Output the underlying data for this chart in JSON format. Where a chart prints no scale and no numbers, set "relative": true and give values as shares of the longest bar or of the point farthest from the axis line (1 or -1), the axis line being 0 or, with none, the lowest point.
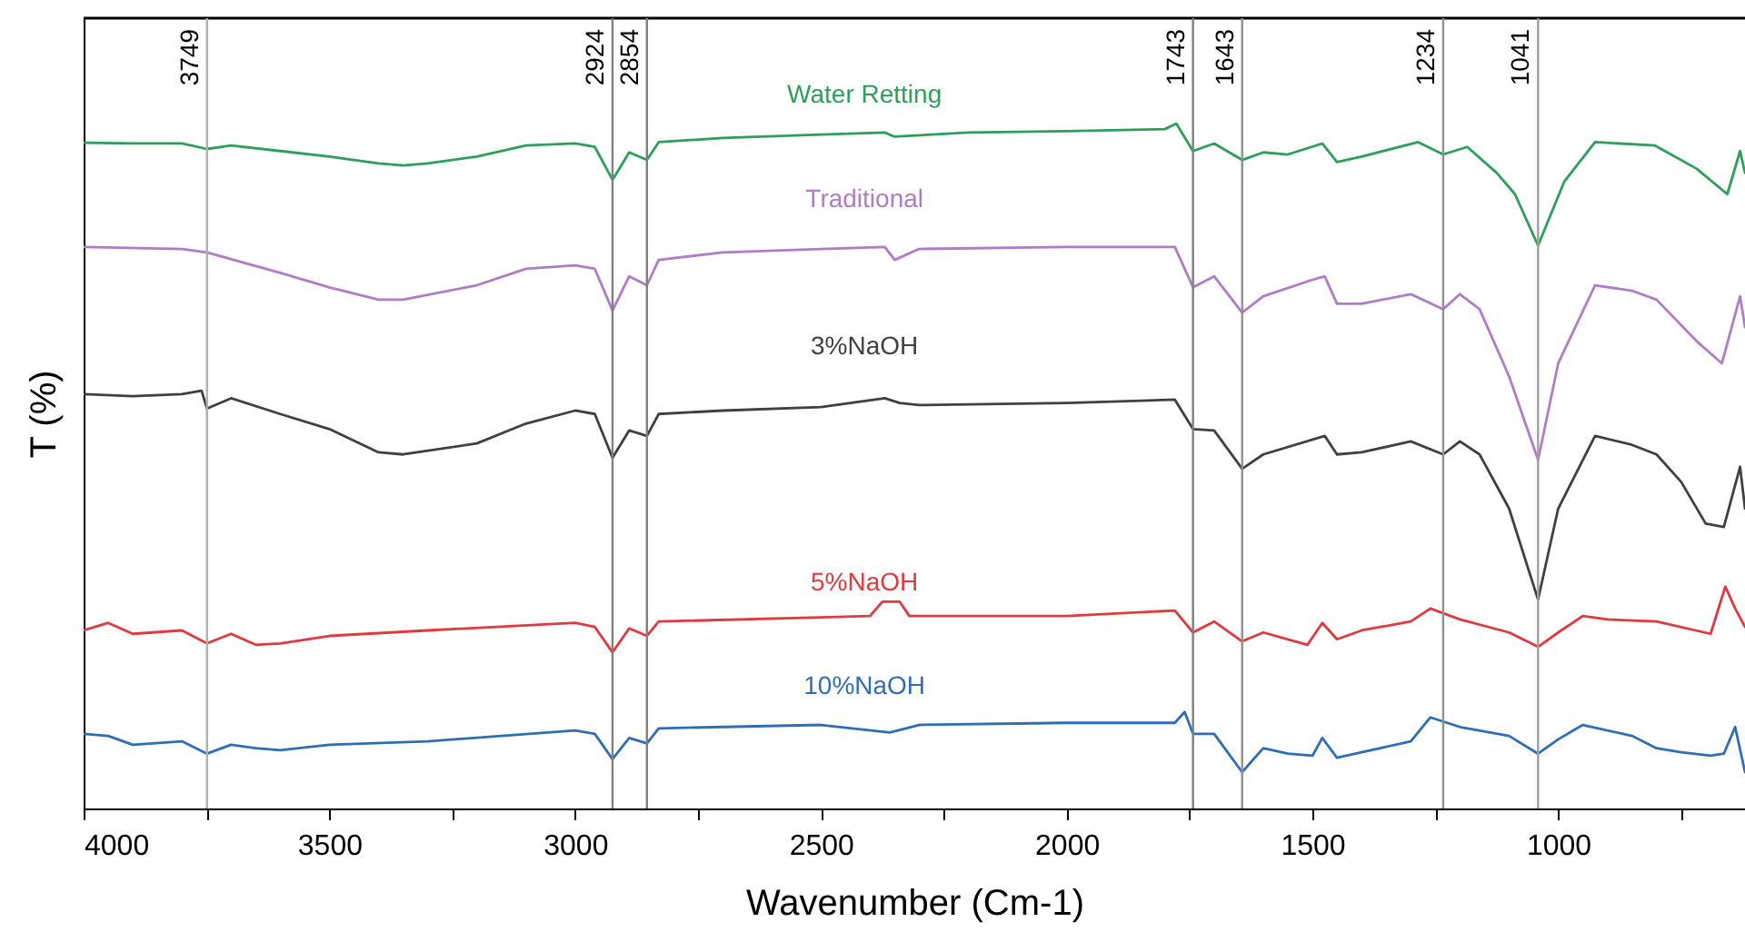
{
  "chart_data": {
    "type": "line",
    "relative": true,
    "xlabel": "Wavenumber (Cm-1)",
    "ylabel": "T (%)",
    "xlim": [
      4000,
      620
    ],
    "xticks": [
      4000,
      {
        "value": 3750,
        "label": null
      },
      3500,
      {
        "value": 3250,
        "label": null
      },
      3000,
      {
        "value": 2750,
        "label": null
      },
      2500,
      {
        "value": 2250,
        "label": null
      },
      2000,
      {
        "value": 1750,
        "label": null
      },
      1500,
      {
        "value": 1250,
        "label": null
      },
      1000,
      {
        "value": 750,
        "label": null
      }
    ],
    "grid": false,
    "line_style": "solid",
    "marker": "none",
    "ref_lines": [
      {
        "axis": "x",
        "value": 3749,
        "label": "3749",
        "color": "#b0b0b0"
      },
      {
        "axis": "x",
        "value": 2924,
        "label": "2924",
        "color": "#808080"
      },
      {
        "axis": "x",
        "value": 2854,
        "label": "2854",
        "color": "#808080"
      },
      {
        "axis": "x",
        "value": 1743,
        "label": "1743",
        "color": "#808080"
      },
      {
        "axis": "x",
        "value": 1643,
        "label": "1643",
        "color": "#909090"
      },
      {
        "axis": "x",
        "value": 1234,
        "label": "1234",
        "color": "#909090"
      },
      {
        "axis": "x",
        "value": 1041,
        "label": "1041",
        "color": "#a0a0a0"
      }
    ],
    "series": [
      {
        "name": "Water Retting",
        "color": "#2e9e5b",
        "x": [
          4000,
          3900,
          3800,
          3749,
          3700,
          3600,
          3500,
          3400,
          3350,
          3300,
          3200,
          3100,
          3000,
          2960,
          2924,
          2890,
          2854,
          2830,
          2700,
          2500,
          2370,
          2350,
          2200,
          2000,
          1800,
          1777,
          1743,
          1700,
          1643,
          1600,
          1550,
          1480,
          1450,
          1400,
          1285,
          1234,
          1185,
          1125,
          1088,
          1041,
          988,
          925,
          803,
          718,
          656,
          630,
          620
        ],
        "values": [
          0.972,
          0.971,
          0.971,
          0.963,
          0.968,
          0.96,
          0.952,
          0.942,
          0.939,
          0.942,
          0.952,
          0.968,
          0.971,
          0.966,
          0.918,
          0.958,
          0.947,
          0.973,
          0.979,
          0.984,
          0.987,
          0.981,
          0.987,
          0.989,
          0.992,
          1.0,
          0.96,
          0.971,
          0.947,
          0.958,
          0.955,
          0.971,
          0.944,
          0.952,
          0.973,
          0.955,
          0.966,
          0.928,
          0.897,
          0.822,
          0.915,
          0.973,
          0.968,
          0.934,
          0.897,
          0.96,
          0.928
        ]
      },
      {
        "name": "Traditional",
        "color": "#b07cc6",
        "x": [
          4000,
          3800,
          3749,
          3600,
          3500,
          3400,
          3350,
          3200,
          3100,
          3000,
          2960,
          2924,
          2890,
          2854,
          2830,
          2700,
          2500,
          2370,
          2350,
          2300,
          2000,
          1780,
          1743,
          1700,
          1643,
          1600,
          1500,
          1475,
          1450,
          1400,
          1300,
          1234,
          1200,
          1160,
          1100,
          1041,
          1000,
          925,
          850,
          800,
          718,
          667,
          630,
          620
        ],
        "values": [
          0.82,
          0.817,
          0.812,
          0.782,
          0.761,
          0.743,
          0.743,
          0.764,
          0.788,
          0.793,
          0.788,
          0.727,
          0.777,
          0.764,
          0.801,
          0.812,
          0.817,
          0.82,
          0.801,
          0.817,
          0.82,
          0.82,
          0.761,
          0.777,
          0.724,
          0.748,
          0.772,
          0.777,
          0.737,
          0.737,
          0.751,
          0.729,
          0.751,
          0.729,
          0.631,
          0.509,
          0.65,
          0.764,
          0.756,
          0.743,
          0.682,
          0.65,
          0.748,
          0.703
        ]
      },
      {
        "name": "3%NaOH",
        "color": "#404040",
        "x": [
          4000,
          3900,
          3800,
          3760,
          3749,
          3700,
          3600,
          3500,
          3400,
          3350,
          3200,
          3100,
          3000,
          2960,
          2924,
          2890,
          2854,
          2830,
          2700,
          2500,
          2370,
          2340,
          2300,
          2000,
          1780,
          1743,
          1700,
          1643,
          1600,
          1475,
          1450,
          1400,
          1300,
          1234,
          1200,
          1160,
          1100,
          1041,
          1000,
          925,
          850,
          800,
          750,
          700,
          663,
          630,
          620
        ],
        "values": [
          0.605,
          0.602,
          0.605,
          0.61,
          0.584,
          0.599,
          0.576,
          0.554,
          0.52,
          0.517,
          0.533,
          0.562,
          0.581,
          0.576,
          0.512,
          0.552,
          0.544,
          0.576,
          0.581,
          0.586,
          0.599,
          0.592,
          0.589,
          0.592,
          0.597,
          0.554,
          0.552,
          0.496,
          0.517,
          0.544,
          0.517,
          0.52,
          0.536,
          0.517,
          0.536,
          0.517,
          0.438,
          0.305,
          0.438,
          0.544,
          0.531,
          0.517,
          0.477,
          0.416,
          0.411,
          0.499,
          0.438
        ]
      },
      {
        "name": "5%NaOH",
        "color": "#e0393e",
        "x": [
          4000,
          3950,
          3900,
          3800,
          3749,
          3700,
          3650,
          3600,
          3500,
          3300,
          3000,
          2960,
          2924,
          2890,
          2854,
          2830,
          2500,
          2400,
          2375,
          2340,
          2320,
          2000,
          1780,
          1743,
          1700,
          1643,
          1600,
          1550,
          1510,
          1480,
          1450,
          1400,
          1300,
          1260,
          1200,
          1100,
          1041,
          1000,
          950,
          900,
          800,
          690,
          660,
          640,
          620
        ],
        "values": [
          0.26,
          0.271,
          0.255,
          0.26,
          0.241,
          0.255,
          0.239,
          0.241,
          0.252,
          0.26,
          0.271,
          0.265,
          0.228,
          0.263,
          0.252,
          0.273,
          0.279,
          0.281,
          0.302,
          0.302,
          0.281,
          0.281,
          0.289,
          0.257,
          0.273,
          0.244,
          0.257,
          0.247,
          0.239,
          0.271,
          0.247,
          0.26,
          0.273,
          0.292,
          0.276,
          0.257,
          0.236,
          0.257,
          0.281,
          0.276,
          0.273,
          0.255,
          0.324,
          0.292,
          0.265
        ]
      },
      {
        "name": "10%NaOH",
        "color": "#2f6db5",
        "x": [
          4000,
          3950,
          3900,
          3800,
          3749,
          3700,
          3650,
          3600,
          3500,
          3300,
          3000,
          2960,
          2924,
          2890,
          2854,
          2830,
          2500,
          2360,
          2300,
          2000,
          1780,
          1760,
          1743,
          1700,
          1643,
          1600,
          1550,
          1500,
          1480,
          1450,
          1400,
          1300,
          1260,
          1200,
          1100,
          1041,
          1000,
          950,
          850,
          800,
          750,
          690,
          663,
          640,
          620
        ],
        "values": [
          0.109,
          0.106,
          0.093,
          0.098,
          0.08,
          0.093,
          0.088,
          0.085,
          0.093,
          0.098,
          0.114,
          0.109,
          0.072,
          0.103,
          0.095,
          0.117,
          0.122,
          0.111,
          0.122,
          0.125,
          0.125,
          0.141,
          0.109,
          0.109,
          0.053,
          0.088,
          0.08,
          0.077,
          0.103,
          0.074,
          0.082,
          0.098,
          0.133,
          0.119,
          0.106,
          0.08,
          0.101,
          0.122,
          0.106,
          0.088,
          0.082,
          0.077,
          0.08,
          0.119,
          0.053
        ]
      }
    ]
  }
}
